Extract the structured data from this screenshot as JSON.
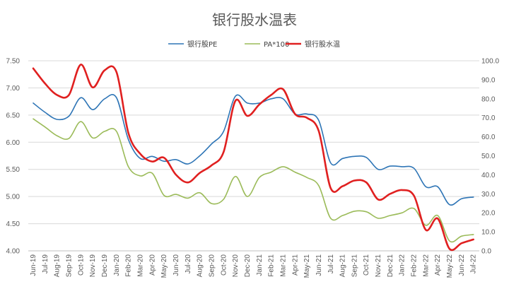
{
  "chart_data": {
    "type": "line",
    "title": "银行股水温表",
    "categories": [
      "Jun-19",
      "Jul-19",
      "Aug-19",
      "Sep-19",
      "Oct-19",
      "Nov-19",
      "Dec-19",
      "Jan-20",
      "Feb-20",
      "Mar-20",
      "Apr-20",
      "May-20",
      "Jun-20",
      "Jul-20",
      "Aug-20",
      "Sep-20",
      "Oct-20",
      "Nov-20",
      "Dec-20",
      "Jan-21",
      "Feb-21",
      "Mar-21",
      "Apr-21",
      "May-21",
      "Jun-21",
      "Jul-21",
      "Aug-21",
      "Sep-21",
      "Oct-21",
      "Nov-21",
      "Dec-21",
      "Jan-22",
      "Feb-22",
      "Mar-22",
      "Apr-22",
      "May-22",
      "Jun-22",
      "Jul-22"
    ],
    "left_axis": {
      "ylim": [
        4.0,
        7.5
      ],
      "ticks": [
        "7.50",
        "7.00",
        "6.50",
        "6.00",
        "5.50",
        "5.00",
        "4.50",
        "4.00"
      ]
    },
    "right_axis": {
      "ylim": [
        0,
        100
      ],
      "ticks": [
        "100.0",
        "90.0",
        "80.0",
        "70.0",
        "60.0",
        "50.0",
        "40.0",
        "30.0",
        "20.0",
        "10.0",
        "0.0"
      ]
    },
    "grid": true,
    "legend_position": "top",
    "series": [
      {
        "name": "银行股PE",
        "axis": "left",
        "color": "#2e75b6",
        "width": 1.6,
        "values": [
          6.72,
          6.55,
          6.42,
          6.48,
          6.82,
          6.6,
          6.8,
          6.82,
          6.05,
          5.7,
          5.74,
          5.65,
          5.68,
          5.6,
          5.75,
          5.97,
          6.2,
          6.85,
          6.72,
          6.72,
          6.8,
          6.8,
          6.52,
          6.52,
          6.4,
          5.62,
          5.7,
          5.74,
          5.72,
          5.5,
          5.56,
          5.55,
          5.52,
          5.18,
          5.18,
          4.85,
          4.96,
          4.99
        ]
      },
      {
        "name": "PA*100",
        "axis": "left",
        "color": "#9bbb59",
        "width": 1.6,
        "values": [
          6.43,
          6.28,
          6.12,
          6.07,
          6.38,
          6.08,
          6.2,
          6.2,
          5.55,
          5.38,
          5.43,
          5.02,
          5.04,
          4.97,
          5.07,
          4.87,
          4.95,
          5.37,
          5.0,
          5.35,
          5.45,
          5.55,
          5.45,
          5.35,
          5.2,
          4.6,
          4.65,
          4.73,
          4.72,
          4.6,
          4.65,
          4.7,
          4.78,
          4.47,
          4.65,
          4.18,
          4.27,
          4.3
        ]
      },
      {
        "name": "银行股水温",
        "axis": "right",
        "color": "#e02020",
        "width": 2.6,
        "values": [
          96,
          88,
          82,
          82,
          98,
          86,
          95,
          94,
          62,
          51,
          47,
          49,
          40,
          36,
          41,
          45,
          52,
          79,
          71,
          77,
          82,
          85,
          72,
          70,
          63,
          33,
          34,
          37,
          36,
          27,
          30,
          32,
          29,
          11,
          17,
          1,
          4,
          6
        ]
      }
    ]
  }
}
